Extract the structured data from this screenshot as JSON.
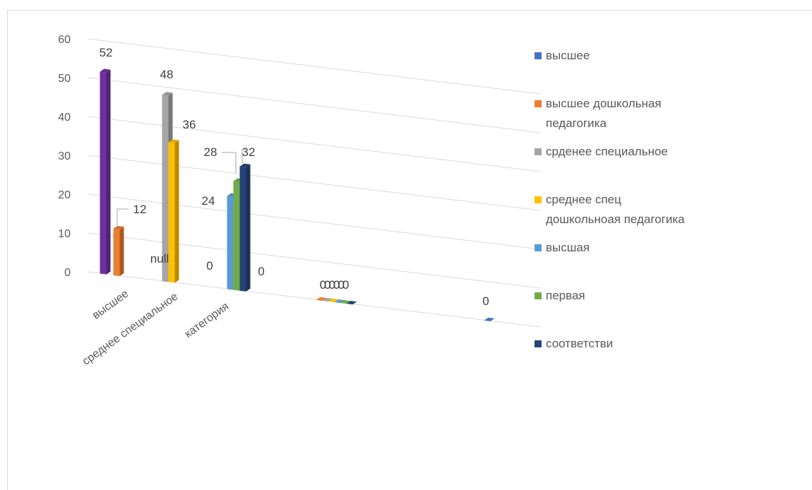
{
  "chart_data": {
    "type": "bar",
    "variant": "3d-column",
    "ylim": [
      0,
      60
    ],
    "yticks": [
      "0",
      "10",
      "20",
      "30",
      "40",
      "50",
      "60"
    ],
    "categories": [
      "высшее",
      "среднее специальное",
      "категория",
      "",
      ""
    ],
    "grid": true,
    "legend_position": "right",
    "series": [
      {
        "name": "высшее",
        "color": "#4472c4",
        "values": [
          52,
          null,
          null,
          null,
          0
        ]
      },
      {
        "name": "высшее дошкольная педагогика",
        "color": "#ed7d31",
        "values": [
          12,
          null,
          null,
          0,
          null
        ]
      },
      {
        "name": "срденее специальное",
        "color": "#a5a5a5",
        "values": [
          null,
          48,
          null,
          0,
          null
        ]
      },
      {
        "name": "среднее спец дошкольноая педагогика",
        "color": "#ffc000",
        "values": [
          null,
          36,
          null,
          0,
          null
        ]
      },
      {
        "name": "высшая",
        "color": "#5b9bd5",
        "values": [
          null,
          null,
          24,
          0,
          null
        ]
      },
      {
        "name": "первая",
        "color": "#70ad47",
        "values": [
          null,
          null,
          28,
          0,
          null
        ]
      },
      {
        "name": "соответстви",
        "color": "#264478",
        "values": [
          null,
          null,
          32,
          0,
          null
        ]
      }
    ],
    "extra_zero_labels": [
      "0",
      "0",
      "0"
    ],
    "special_colors": {
      "first_bar": "#7030a0"
    }
  }
}
